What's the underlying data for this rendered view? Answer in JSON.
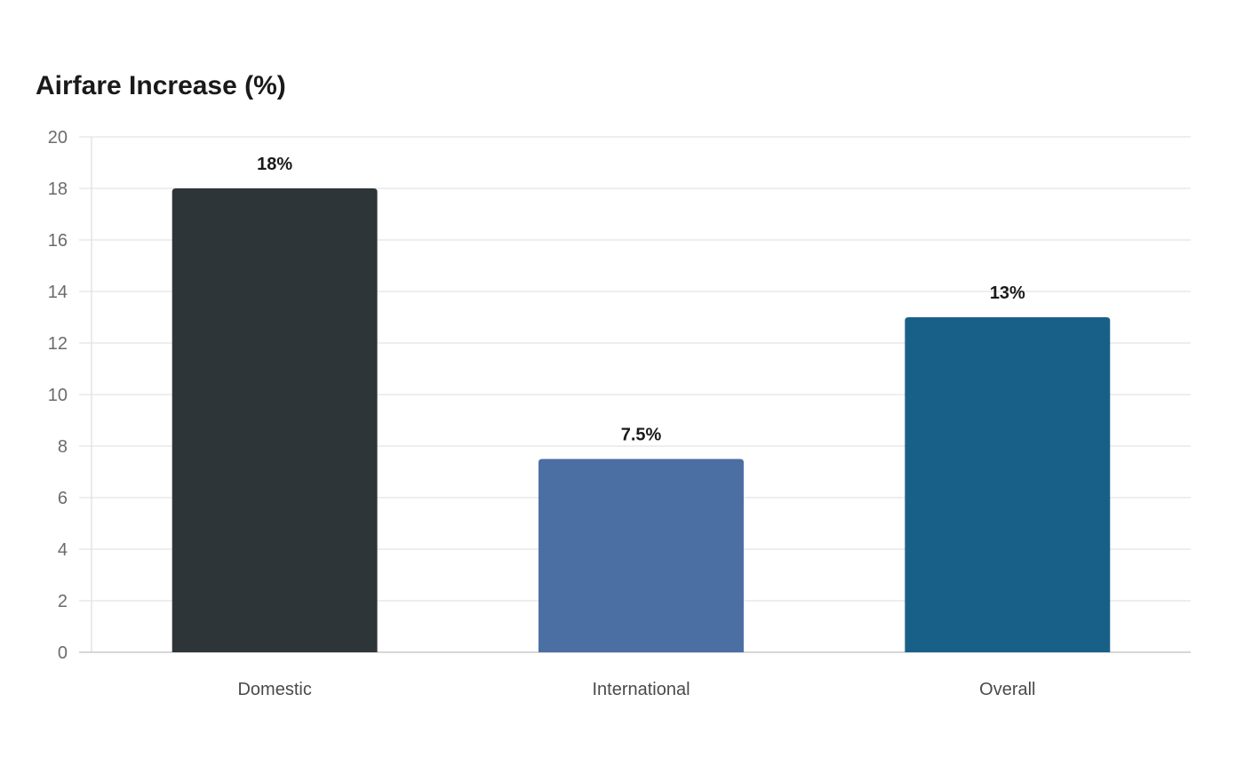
{
  "chart_data": {
    "type": "bar",
    "title": "Airfare Increase (%)",
    "xlabel": "",
    "ylabel": "",
    "categories": [
      "Domestic",
      "International",
      "Overall"
    ],
    "values": [
      18,
      7.5,
      13
    ],
    "value_labels": [
      "18%",
      "7.5%",
      "13%"
    ],
    "colors": [
      "#2e3538",
      "#4b6ea3",
      "#196088"
    ],
    "ylim": [
      0,
      20
    ],
    "yticks": [
      0,
      2,
      4,
      6,
      8,
      10,
      12,
      14,
      16,
      18,
      20
    ],
    "grid": true,
    "legend": "none"
  }
}
